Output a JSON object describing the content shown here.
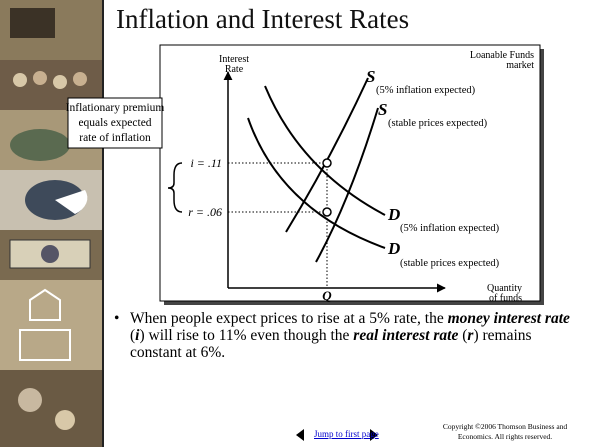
{
  "title": "Inflation and Interest Rates",
  "diagram": {
    "y_axis_label": [
      "Interest",
      "Rate"
    ],
    "market_label": [
      "Loanable Funds",
      "market"
    ],
    "x_axis_label": [
      "Quantity",
      "of funds"
    ],
    "quantity_label": "Q",
    "money_rate_label": "i = .11",
    "real_rate_label": "r = .06",
    "supply_inflation": {
      "symbol": "S",
      "note": "(5% inflation expected)"
    },
    "supply_stable": {
      "symbol": "S",
      "note": "(stable prices expected)"
    },
    "demand_inflation": {
      "symbol": "D",
      "note": "(5% inflation expected)"
    },
    "demand_stable": {
      "symbol": "D",
      "note": "(stable prices expected)"
    },
    "callout": [
      "Inflationary premium",
      "equals expected",
      "rate of inflation"
    ]
  },
  "bullet": [
    "When people expect prices to rise at a 5% rate, the ",
    "money interest rate",
    " (",
    "i",
    ") will rise to 11% even though the ",
    "real interest rate",
    " (",
    "r",
    ") remains constant at 6%."
  ],
  "footer": {
    "link": "Jump to first page",
    "copyright": [
      "Copyright ©2006  Thomson Business and",
      "Economics. All rights reserved."
    ]
  }
}
